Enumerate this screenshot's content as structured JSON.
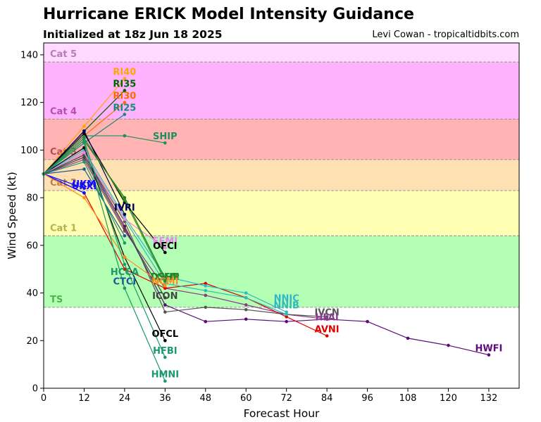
{
  "header": {
    "title": "Hurricane ERICK Model Intensity Guidance",
    "subtitle": "Initialized at 18z Jun 18 2025",
    "credit": "Levi Cowan - tropicaltidbits.com"
  },
  "chart_data": {
    "type": "line",
    "title": "Hurricane ERICK Model Intensity Guidance",
    "xlabel": "Forecast Hour",
    "ylabel": "Wind Speed (kt)",
    "xlim": [
      0,
      141
    ],
    "ylim": [
      0,
      145
    ],
    "xticks": [
      0,
      12,
      24,
      36,
      48,
      60,
      72,
      84,
      96,
      108,
      120,
      132
    ],
    "yticks": [
      0,
      20,
      40,
      60,
      80,
      100,
      120,
      140
    ],
    "categories": [
      {
        "label": "TS",
        "min": 34,
        "max": 64,
        "color": "#b3ffb3",
        "text_color": "#4db34d"
      },
      {
        "label": "Cat 1",
        "min": 64,
        "max": 83,
        "color": "#ffffb3",
        "text_color": "#b3b34d"
      },
      {
        "label": "Cat 2",
        "min": 83,
        "max": 96,
        "color": "#ffe0b3",
        "text_color": "#b3804d"
      },
      {
        "label": "Cat 3",
        "min": 96,
        "max": 113,
        "color": "#ffb3b3",
        "text_color": "#b34d4d"
      },
      {
        "label": "Cat 4",
        "min": 113,
        "max": 137,
        "color": "#ffb3ff",
        "text_color": "#b34db3"
      },
      {
        "label": "Cat 5",
        "min": 137,
        "max": 145,
        "color": "#ffd9ff",
        "text_color": "#b37fb3"
      }
    ],
    "series": [
      {
        "name": "RI40",
        "color": "#ffa500",
        "x": [
          0,
          12,
          24
        ],
        "y": [
          90,
          110,
          130
        ]
      },
      {
        "name": "RI35",
        "color": "#006400",
        "x": [
          0,
          12,
          24
        ],
        "y": [
          90,
          108,
          125
        ]
      },
      {
        "name": "RI30",
        "color": "#ff6a00",
        "x": [
          0,
          12,
          24
        ],
        "y": [
          90,
          106,
          120
        ]
      },
      {
        "name": "RI25",
        "color": "#1a8a78",
        "x": [
          0,
          12,
          24
        ],
        "y": [
          90,
          103,
          115
        ]
      },
      {
        "name": "SHIP",
        "color": "#1a9060",
        "x": [
          0,
          12,
          24,
          36
        ],
        "y": [
          90,
          106,
          106,
          103
        ]
      },
      {
        "name": "HWFI",
        "color": "#5c0a7a",
        "x": [
          0,
          12,
          24,
          36,
          48,
          60,
          72,
          84,
          96,
          108,
          120,
          132
        ],
        "y": [
          90,
          98,
          68,
          35,
          28,
          29,
          28,
          29,
          28,
          21,
          18,
          14
        ]
      },
      {
        "name": "HFAI",
        "color": "#8a3a8a",
        "x": [
          0,
          12,
          24,
          36,
          48,
          60,
          72,
          84
        ],
        "y": [
          90,
          96,
          66,
          42,
          39,
          35,
          31,
          29
        ]
      },
      {
        "name": "AVNI",
        "color": "#e00000",
        "x": [
          0,
          12,
          24,
          36,
          48,
          60,
          72,
          84
        ],
        "y": [
          90,
          82,
          50,
          42,
          44,
          38,
          30,
          22
        ]
      },
      {
        "name": "IVCN",
        "color": "#555555",
        "x": [
          0,
          12,
          24,
          36,
          48,
          60,
          72,
          84
        ],
        "y": [
          90,
          98,
          70,
          32,
          34,
          33,
          31,
          30
        ]
      },
      {
        "name": "NNIC",
        "color": "#33b5cc",
        "x": [
          0,
          12,
          24,
          36,
          48,
          60,
          72
        ],
        "y": [
          90,
          100,
          72,
          47,
          43,
          40,
          32
        ]
      },
      {
        "name": "NNIB",
        "color": "#33b8b8",
        "x": [
          0,
          12,
          24,
          36,
          48,
          60,
          72
        ],
        "y": [
          90,
          99,
          71,
          44,
          41,
          38,
          31
        ]
      },
      {
        "name": "OFCI",
        "color": "#000000",
        "x": [
          0,
          12,
          24,
          36
        ],
        "y": [
          90,
          107,
          78,
          57
        ]
      },
      {
        "name": "OFCL",
        "color": "#000000",
        "x": [
          0,
          12,
          24,
          36
        ],
        "y": [
          90,
          101,
          55,
          20
        ]
      },
      {
        "name": "IVRI",
        "color": "#00005a",
        "x": [
          0,
          12,
          24
        ],
        "y": [
          90,
          108,
          73
        ]
      },
      {
        "name": "HCCA",
        "color": "#1a9a6a",
        "x": [
          0,
          12,
          24
        ],
        "y": [
          90,
          95,
          61
        ]
      },
      {
        "name": "CTCI",
        "color": "#1a5a9a",
        "x": [
          0,
          12,
          24
        ],
        "y": [
          90,
          92,
          64
        ]
      },
      {
        "name": "UKXI",
        "color": "#1010ff",
        "x": [
          0,
          12
        ],
        "y": [
          90,
          82
        ]
      },
      {
        "name": "UKM",
        "color": "#1010ff",
        "x": [
          0,
          12
        ],
        "y": [
          90,
          84
        ]
      },
      {
        "name": "EEMI",
        "color": "#ee82ee",
        "x": [
          0,
          12,
          24,
          36
        ],
        "y": [
          90,
          99,
          71,
          59
        ]
      },
      {
        "name": "DSHP",
        "color": "#1a7a1a",
        "x": [
          0,
          12,
          24,
          36
        ],
        "y": [
          90,
          104,
          80,
          46
        ]
      },
      {
        "name": "LGEM",
        "color": "#2a8a2a",
        "x": [
          0,
          12,
          24,
          36
        ],
        "y": [
          90,
          105,
          79,
          45
        ]
      },
      {
        "name": "NCMI",
        "color": "#ff8c1a",
        "x": [
          0,
          12,
          24,
          36
        ],
        "y": [
          90,
          80,
          55,
          43
        ]
      },
      {
        "name": "ICON",
        "color": "#444444",
        "x": [
          0,
          12,
          24,
          36
        ],
        "y": [
          90,
          97,
          67,
          38
        ]
      },
      {
        "name": "HFBI",
        "color": "#1a9a6a",
        "x": [
          0,
          12,
          24,
          36
        ],
        "y": [
          90,
          104,
          52,
          13
        ]
      },
      {
        "name": "HMNI",
        "color": "#1a9a6a",
        "x": [
          0,
          12,
          24,
          36
        ],
        "y": [
          90,
          103,
          42,
          3
        ]
      }
    ],
    "labels": [
      {
        "text": "RI40",
        "color": "#ffa500",
        "x": 24,
        "y": 133
      },
      {
        "text": "RI35",
        "color": "#006400",
        "x": 24,
        "y": 128
      },
      {
        "text": "RI30",
        "color": "#ff6a00",
        "x": 24,
        "y": 123
      },
      {
        "text": "RI25",
        "color": "#1a8a78",
        "x": 24,
        "y": 118
      },
      {
        "text": "SHIP",
        "color": "#1a9060",
        "x": 36,
        "y": 106
      },
      {
        "text": "UKM",
        "color": "#1010ff",
        "x": 12,
        "y": 86
      },
      {
        "text": "UKXI",
        "color": "#1010ff",
        "x": 12,
        "y": 85
      },
      {
        "text": "IVRI",
        "color": "#00005a",
        "x": 24,
        "y": 76
      },
      {
        "text": "EEMI",
        "color": "#ee82ee",
        "x": 36,
        "y": 62
      },
      {
        "text": "OFCI",
        "color": "#000000",
        "x": 36,
        "y": 60
      },
      {
        "text": "HCCA",
        "color": "#1a9a6a",
        "x": 24,
        "y": 49
      },
      {
        "text": "DSHP",
        "color": "#1a7a1a",
        "x": 36,
        "y": 47
      },
      {
        "text": "LGEM",
        "color": "#2a8a2a",
        "x": 36,
        "y": 47
      },
      {
        "text": "CTCI",
        "color": "#1a5a9a",
        "x": 24,
        "y": 45
      },
      {
        "text": "NCMI",
        "color": "#ff8c1a",
        "x": 36,
        "y": 45
      },
      {
        "text": "ICON",
        "color": "#444444",
        "x": 36,
        "y": 39
      },
      {
        "text": "NNIC",
        "color": "#33b5cc",
        "x": 72,
        "y": 38
      },
      {
        "text": "NNIB",
        "color": "#33b8b8",
        "x": 72,
        "y": 35
      },
      {
        "text": "IVCN",
        "color": "#555555",
        "x": 84,
        "y": 32
      },
      {
        "text": "HFAI",
        "color": "#8a3a8a",
        "x": 84,
        "y": 30
      },
      {
        "text": "AVNI",
        "color": "#e00000",
        "x": 84,
        "y": 25
      },
      {
        "text": "OFCL",
        "color": "#000000",
        "x": 36,
        "y": 23
      },
      {
        "text": "HFBI",
        "color": "#1a9a6a",
        "x": 36,
        "y": 16
      },
      {
        "text": "HWFI",
        "color": "#5c0a7a",
        "x": 132,
        "y": 17
      },
      {
        "text": "HMNI",
        "color": "#1a9a6a",
        "x": 36,
        "y": 6
      }
    ]
  }
}
